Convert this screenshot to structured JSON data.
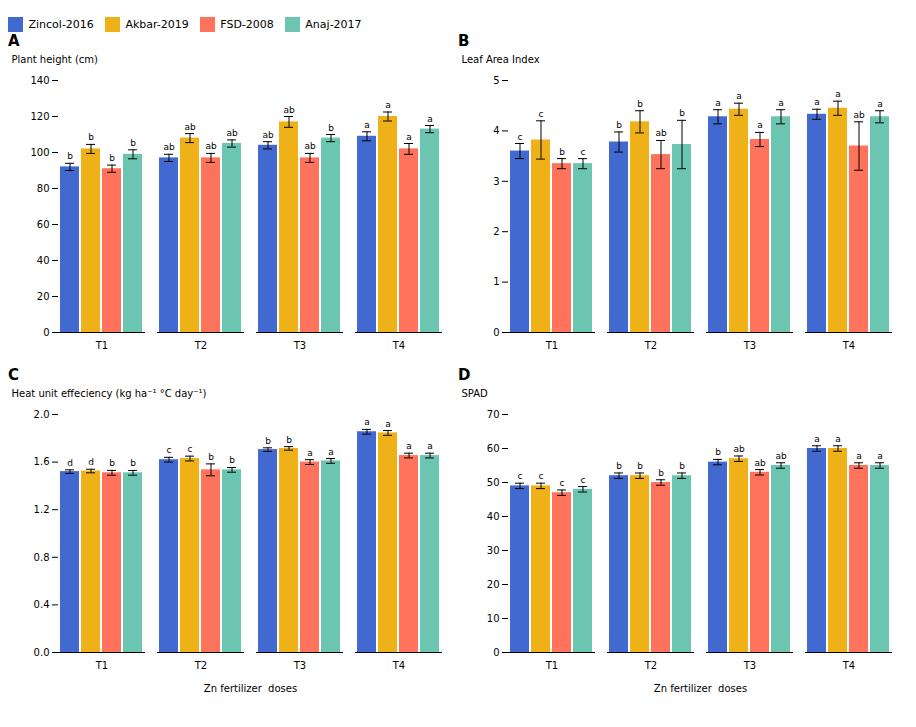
{
  "chart_data": [
    {
      "type": "bar",
      "title": "A",
      "legend": "top",
      "categories": [
        "T1",
        "T2",
        "T3",
        "T4"
      ],
      "ylabel": "Plant height (cm)",
      "ylim": [
        0,
        140
      ],
      "yticks": [
        0,
        20,
        40,
        60,
        80,
        100,
        120,
        140
      ],
      "series": [
        {
          "name": "Zincol-2016",
          "values": [
            92,
            97,
            104,
            109
          ],
          "errors": [
            2.0,
            2.0,
            2.0,
            2.5
          ],
          "annotations": [
            "b",
            "ab",
            "ab",
            "a"
          ]
        },
        {
          "name": "Akbar-2019",
          "values": [
            102,
            108,
            117,
            120
          ],
          "errors": [
            2.5,
            2.5,
            3.0,
            2.5
          ],
          "annotations": [
            "b",
            "ab",
            "ab",
            "a"
          ]
        },
        {
          "name": "FSD-2008",
          "values": [
            91,
            97,
            97,
            102
          ],
          "errors": [
            2.0,
            2.5,
            2.5,
            3.0
          ],
          "annotations": [
            "b",
            "ab",
            "ab",
            "a"
          ]
        },
        {
          "name": "Anaj-2017",
          "values": [
            99,
            105,
            108,
            113
          ],
          "errors": [
            2.5,
            2.0,
            2.0,
            2.0
          ],
          "annotations": [
            "b",
            "ab",
            "b",
            "a"
          ]
        }
      ]
    },
    {
      "type": "bar",
      "title": "B",
      "categories": [
        "T1",
        "T2",
        "T3",
        "T4"
      ],
      "ylabel": "Leaf Area Index",
      "ylim": [
        0,
        5
      ],
      "yticks": [
        0,
        1,
        2,
        3,
        4,
        5
      ],
      "series": [
        {
          "name": "Zincol-2016",
          "values": [
            3.6,
            3.78,
            4.28,
            4.33
          ],
          "errors": [
            0.15,
            0.2,
            0.14,
            0.1
          ],
          "annotations": [
            "c",
            "b",
            "a",
            "a"
          ]
        },
        {
          "name": "Akbar-2019",
          "values": [
            3.82,
            4.18,
            4.43,
            4.45
          ],
          "errors": [
            0.38,
            0.22,
            0.12,
            0.14
          ],
          "annotations": [
            "c",
            "b",
            "a",
            "a"
          ]
        },
        {
          "name": "FSD-2008",
          "values": [
            3.35,
            3.53,
            3.83,
            3.7
          ],
          "errors": [
            0.1,
            0.28,
            0.14,
            0.48
          ],
          "annotations": [
            "b",
            "ab",
            "a",
            "ab"
          ]
        },
        {
          "name": "Anaj-2017",
          "values": [
            3.35,
            3.73,
            4.28,
            4.28
          ],
          "errors": [
            0.1,
            0.48,
            0.14,
            0.12
          ],
          "annotations": [
            "c",
            "b",
            "a",
            "a"
          ]
        }
      ]
    },
    {
      "type": "bar",
      "title": "C",
      "categories": [
        "T1",
        "T2",
        "T3",
        "T4"
      ],
      "xlabel": "Zn fertilizer  doses",
      "ylabel": "Heat unit effeciency (kg ha⁻¹ °C day⁻¹)",
      "ylim": [
        0,
        2
      ],
      "yticks": [
        {
          "value": 0,
          "label": "0.0"
        },
        0.4,
        0.8,
        1.2,
        1.6,
        {
          "value": 2,
          "label": "2.0"
        }
      ],
      "series": [
        {
          "name": "Zincol-2016",
          "values": [
            1.52,
            1.62,
            1.705,
            1.855
          ],
          "errors": [
            0.015,
            0.02,
            0.015,
            0.02
          ],
          "annotations": [
            "d",
            "c",
            "b",
            "a"
          ]
        },
        {
          "name": "Akbar-2019",
          "values": [
            1.525,
            1.63,
            1.715,
            1.845
          ],
          "errors": [
            0.015,
            0.02,
            0.015,
            0.02
          ],
          "annotations": [
            "d",
            "c",
            "b",
            "a"
          ]
        },
        {
          "name": "FSD-2008",
          "values": [
            1.51,
            1.535,
            1.6,
            1.655
          ],
          "errors": [
            0.02,
            0.05,
            0.02,
            0.02
          ],
          "annotations": [
            "b",
            "b",
            "a",
            "a"
          ]
        },
        {
          "name": "Anaj-2017",
          "values": [
            1.51,
            1.535,
            1.61,
            1.655
          ],
          "errors": [
            0.02,
            0.02,
            0.02,
            0.02
          ],
          "annotations": [
            "b",
            "b",
            "a",
            "a"
          ]
        }
      ]
    },
    {
      "type": "bar",
      "title": "D",
      "categories": [
        "T1",
        "T2",
        "T3",
        "T4"
      ],
      "xlabel": "Zn fertilizer  doses",
      "ylabel": "SPAD",
      "ylim": [
        0,
        70
      ],
      "yticks": [
        0,
        10,
        20,
        30,
        40,
        50,
        60,
        70
      ],
      "series": [
        {
          "name": "Zincol-2016",
          "values": [
            49,
            52,
            56,
            60
          ],
          "errors": [
            0.8,
            0.8,
            0.8,
            0.8
          ],
          "annotations": [
            "c",
            "b",
            "b",
            "a"
          ]
        },
        {
          "name": "Akbar-2019",
          "values": [
            49,
            52,
            57,
            60
          ],
          "errors": [
            0.8,
            0.8,
            0.8,
            0.8
          ],
          "annotations": [
            "c",
            "b",
            "ab",
            "a"
          ]
        },
        {
          "name": "FSD-2008",
          "values": [
            47,
            50,
            53,
            55
          ],
          "errors": [
            0.8,
            0.8,
            0.8,
            0.8
          ],
          "annotations": [
            "c",
            "b",
            "ab",
            "a"
          ]
        },
        {
          "name": "Anaj-2017",
          "values": [
            48,
            52,
            55,
            55
          ],
          "errors": [
            0.8,
            0.8,
            0.8,
            0.8
          ],
          "annotations": [
            "c",
            "b",
            "ab",
            "a"
          ]
        }
      ]
    }
  ]
}
